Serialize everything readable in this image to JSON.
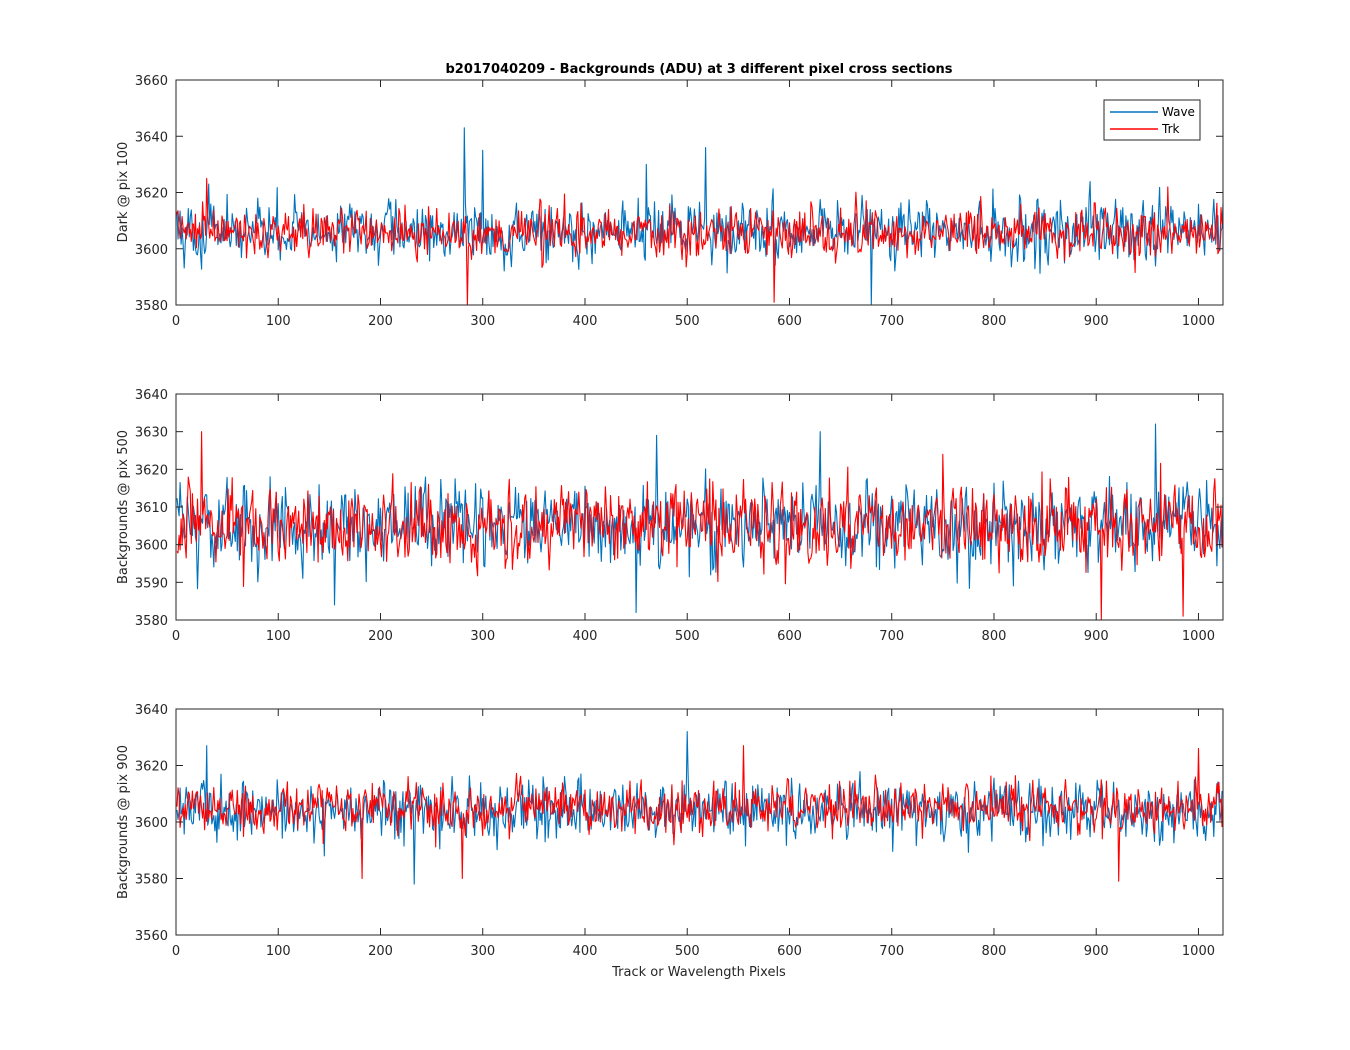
{
  "chart_data": {
    "type": "line",
    "title": "b2017040209 - Backgrounds (ADU) at 3 different pixel cross sections",
    "xlabel": "Track or Wavelength Pixels",
    "legend": {
      "placement": "top-right",
      "entries": [
        {
          "name": "Wave",
          "color": "#0072BD"
        },
        {
          "name": "Trk",
          "color": "#FF0000"
        }
      ]
    },
    "x_range": [
      0,
      1024
    ],
    "x_ticks": [
      0,
      100,
      200,
      300,
      400,
      500,
      600,
      700,
      800,
      900,
      1000
    ],
    "panels": [
      {
        "ylabel": "Dark @ pix 100",
        "ylim": [
          3580,
          3660
        ],
        "y_ticks": [
          3580,
          3600,
          3620,
          3640,
          3660
        ],
        "series": [
          {
            "name": "Wave",
            "color": "#0072BD",
            "baseline": 3606,
            "noise_sd": 6,
            "min": 3580,
            "max": 3643,
            "peaks": [
              [
                282,
                3643
              ],
              [
                300,
                3635
              ],
              [
                518,
                3636
              ],
              [
                680,
                3580
              ],
              [
                460,
                3630
              ]
            ]
          },
          {
            "name": "Trk",
            "color": "#FF0000",
            "baseline": 3606,
            "noise_sd": 5,
            "min": 3580,
            "max": 3625,
            "peaks": [
              [
                285,
                3580
              ],
              [
                585,
                3581
              ],
              [
                970,
                3622
              ],
              [
                30,
                3625
              ]
            ]
          }
        ]
      },
      {
        "ylabel": "Backgrounds @ pix 500",
        "ylim": [
          3580,
          3640
        ],
        "y_ticks": [
          3580,
          3590,
          3600,
          3610,
          3620,
          3630,
          3640
        ],
        "series": [
          {
            "name": "Wave",
            "color": "#0072BD",
            "baseline": 3605,
            "noise_sd": 6,
            "min": 3582,
            "max": 3632,
            "peaks": [
              [
                958,
                3632
              ],
              [
                155,
                3584
              ],
              [
                450,
                3582
              ],
              [
                630,
                3630
              ],
              [
                470,
                3629
              ]
            ]
          },
          {
            "name": "Trk",
            "color": "#FF0000",
            "baseline": 3605,
            "noise_sd": 6,
            "min": 3580,
            "max": 3630,
            "peaks": [
              [
                25,
                3630
              ],
              [
                905,
                3580
              ],
              [
                985,
                3581
              ],
              [
                750,
                3624
              ]
            ]
          }
        ]
      },
      {
        "ylabel": "Backgrounds @ pix 900",
        "ylim": [
          3560,
          3640
        ],
        "y_ticks": [
          3560,
          3580,
          3600,
          3620,
          3640
        ],
        "series": [
          {
            "name": "Wave",
            "color": "#0072BD",
            "baseline": 3604,
            "noise_sd": 6,
            "min": 3578,
            "max": 3632,
            "peaks": [
              [
                500,
                3632
              ],
              [
                233,
                3578
              ],
              [
                30,
                3627
              ]
            ]
          },
          {
            "name": "Trk",
            "color": "#FF0000",
            "baseline": 3605,
            "noise_sd": 5,
            "min": 3579,
            "max": 3627,
            "peaks": [
              [
                182,
                3580
              ],
              [
                280,
                3580
              ],
              [
                922,
                3579
              ],
              [
                555,
                3627
              ],
              [
                1000,
                3626
              ]
            ]
          }
        ]
      }
    ]
  }
}
